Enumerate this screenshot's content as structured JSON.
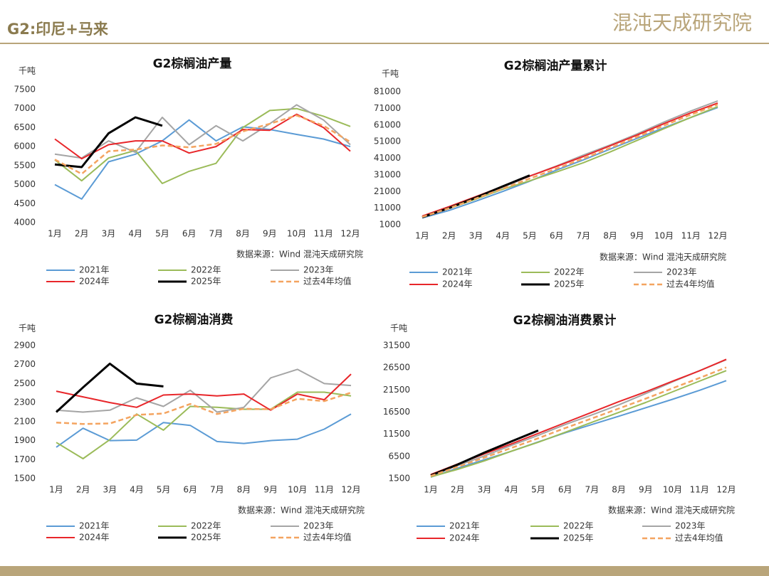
{
  "header": {
    "title": "G2:印尼+马来",
    "logo": "混沌天成研究院"
  },
  "chart_data": [
    {
      "type": "line",
      "title": "G2棕榈油产量",
      "unit": "千吨",
      "source": "数据来源：Wind  混沌天成研究院",
      "categories": [
        "1月",
        "2月",
        "3月",
        "4月",
        "5月",
        "6月",
        "7月",
        "8月",
        "9月",
        "10月",
        "11月",
        "12月"
      ],
      "ylim": [
        4000,
        7500
      ],
      "yticks": [
        4000,
        4500,
        5000,
        5500,
        6000,
        6500,
        7000,
        7500
      ],
      "series": [
        {
          "name": "2021年",
          "color": "#5b9bd5",
          "values": [
            5000,
            4620,
            5600,
            5800,
            6150,
            6700,
            6150,
            6520,
            6450,
            6320,
            6200,
            6000
          ]
        },
        {
          "name": "2022年",
          "color": "#9bbb59",
          "values": [
            5650,
            5100,
            5700,
            5900,
            5030,
            5350,
            5560,
            6500,
            6950,
            7000,
            6800,
            6530
          ]
        },
        {
          "name": "2023年",
          "color": "#a5a5a5",
          "values": [
            5800,
            5700,
            6150,
            5850,
            6770,
            6050,
            6550,
            6150,
            6600,
            7100,
            6700,
            6050
          ]
        },
        {
          "name": "2024年",
          "color": "#e8262a",
          "values": [
            6200,
            5680,
            6050,
            6150,
            6150,
            5830,
            6000,
            6450,
            6430,
            6850,
            6500,
            5880
          ]
        },
        {
          "name": "2025年",
          "color": "#000000",
          "values": [
            5530,
            5460,
            6350,
            6770,
            6550,
            null,
            null,
            null,
            null,
            null,
            null,
            null
          ]
        },
        {
          "name": "过去4年均值",
          "color": "#f4a460",
          "dashed": true,
          "values": [
            5660,
            5280,
            5880,
            5920,
            6030,
            5980,
            6070,
            6400,
            6600,
            6820,
            6550,
            6120
          ]
        }
      ]
    },
    {
      "type": "line",
      "title": "G2棕榈油产量累计",
      "unit": "千吨",
      "source": "数据来源：Wind  混沌天成研究院",
      "categories": [
        "1月",
        "2月",
        "3月",
        "4月",
        "5月",
        "6月",
        "7月",
        "8月",
        "9月",
        "10月",
        "11月",
        "12月"
      ],
      "ylim": [
        1000,
        81000
      ],
      "yticks": [
        1000,
        11000,
        21000,
        31000,
        41000,
        51000,
        61000,
        71000,
        81000
      ],
      "series": [
        {
          "name": "2021年",
          "color": "#5b9bd5",
          "values": [
            5000,
            9620,
            15220,
            21020,
            27170,
            33870,
            40020,
            46540,
            52990,
            59310,
            65510,
            71510
          ]
        },
        {
          "name": "2022年",
          "color": "#9bbb59",
          "values": [
            5650,
            10750,
            16450,
            22350,
            27380,
            32730,
            38290,
            44790,
            51740,
            58740,
            65540,
            72070
          ]
        },
        {
          "name": "2023年",
          "color": "#a5a5a5",
          "values": [
            5800,
            11500,
            17650,
            23500,
            30270,
            36320,
            42870,
            49020,
            55620,
            62720,
            69420,
            75470
          ]
        },
        {
          "name": "2024年",
          "color": "#e8262a",
          "values": [
            6200,
            11880,
            17930,
            24080,
            30230,
            36060,
            42060,
            48510,
            54940,
            61790,
            68290,
            74170
          ]
        },
        {
          "name": "2025年",
          "color": "#000000",
          "values": [
            5530,
            10990,
            17340,
            24110,
            30660,
            null,
            null,
            null,
            null,
            null,
            null,
            null
          ]
        },
        {
          "name": "过去4年均值",
          "color": "#f4a460",
          "dashed": true,
          "values": [
            5660,
            10940,
            16820,
            22740,
            28770,
            34750,
            40820,
            47220,
            53820,
            60640,
            67190,
            73310
          ]
        }
      ]
    },
    {
      "type": "line",
      "title": "G2棕榈油消费",
      "unit": "千吨",
      "source": "数据来源：Wind  混沌天成研究院",
      "categories": [
        "1月",
        "2月",
        "3月",
        "4月",
        "5月",
        "6月",
        "7月",
        "8月",
        "9月",
        "10月",
        "11月",
        "12月"
      ],
      "ylim": [
        1500,
        2900
      ],
      "yticks": [
        1500,
        1700,
        1900,
        2100,
        2300,
        2500,
        2700,
        2900
      ],
      "series": [
        {
          "name": "2021年",
          "color": "#5b9bd5",
          "values": [
            1830,
            2030,
            1900,
            1905,
            2090,
            2060,
            1890,
            1870,
            1900,
            1915,
            2020,
            2180
          ]
        },
        {
          "name": "2022年",
          "color": "#9bbb59",
          "values": [
            1880,
            1710,
            1910,
            2180,
            2010,
            2260,
            2250,
            2230,
            2230,
            2410,
            2410,
            2370
          ]
        },
        {
          "name": "2023年",
          "color": "#a5a5a5",
          "values": [
            2220,
            2200,
            2220,
            2350,
            2260,
            2430,
            2200,
            2250,
            2560,
            2650,
            2500,
            2480
          ]
        },
        {
          "name": "2024年",
          "color": "#e8262a",
          "values": [
            2420,
            2360,
            2300,
            2250,
            2380,
            2390,
            2370,
            2390,
            2220,
            2390,
            2330,
            2600
          ]
        },
        {
          "name": "2025年",
          "color": "#000000",
          "values": [
            2200,
            2460,
            2710,
            2500,
            2470,
            null,
            null,
            null,
            null,
            null,
            null,
            null
          ]
        },
        {
          "name": "过去4年均值",
          "color": "#f4a460",
          "dashed": true,
          "values": [
            2090,
            2075,
            2080,
            2170,
            2185,
            2285,
            2180,
            2235,
            2230,
            2340,
            2315,
            2405
          ]
        }
      ]
    },
    {
      "type": "line",
      "title": "G2棕榈油消费累计",
      "unit": "千吨",
      "source": "数据来源：Wind  混沌天成研究院",
      "categories": [
        "1月",
        "2月",
        "3月",
        "4月",
        "5月",
        "6月",
        "7月",
        "8月",
        "9月",
        "10月",
        "11月",
        "12月"
      ],
      "ylim": [
        1500,
        31500
      ],
      "yticks": [
        1500,
        6500,
        11500,
        16500,
        21500,
        26500,
        31500
      ],
      "series": [
        {
          "name": "2021年",
          "color": "#5b9bd5",
          "values": [
            1830,
            3860,
            5760,
            7665,
            9755,
            11815,
            13705,
            15575,
            17475,
            19390,
            21410,
            23590
          ]
        },
        {
          "name": "2022年",
          "color": "#9bbb59",
          "values": [
            1880,
            3590,
            5500,
            7680,
            9690,
            11950,
            14200,
            16430,
            18660,
            21070,
            23480,
            25850
          ]
        },
        {
          "name": "2023年",
          "color": "#a5a5a5",
          "values": [
            2220,
            4420,
            6640,
            8990,
            11250,
            13680,
            15880,
            18130,
            20690,
            23340,
            25840,
            28320
          ]
        },
        {
          "name": "2024年",
          "color": "#e8262a",
          "values": [
            2420,
            4780,
            7080,
            9330,
            11710,
            14100,
            16470,
            18860,
            21080,
            23470,
            25800,
            28400
          ]
        },
        {
          "name": "2025年",
          "color": "#000000",
          "values": [
            2200,
            4660,
            7370,
            9870,
            12340,
            null,
            null,
            null,
            null,
            null,
            null,
            null
          ]
        },
        {
          "name": "过去4年均值",
          "color": "#f4a460",
          "dashed": true,
          "values": [
            2090,
            4165,
            6245,
            8415,
            10600,
            12885,
            15065,
            17300,
            19530,
            21870,
            24185,
            26590
          ]
        }
      ]
    }
  ]
}
